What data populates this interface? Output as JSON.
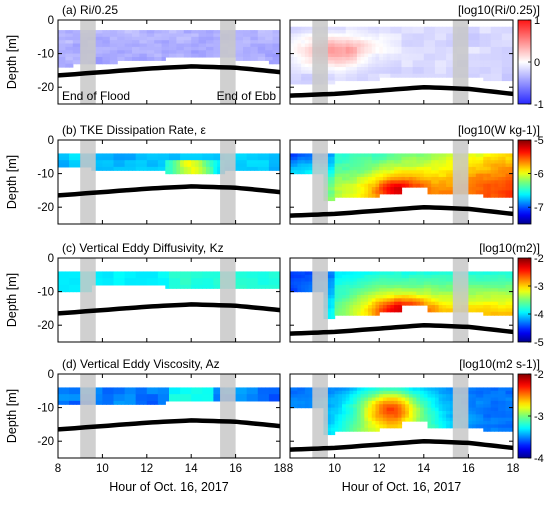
{
  "figure": {
    "xlabel": "Hour of Oct. 16, 2017",
    "ylabel": "Depth [m]",
    "x_ticks": [
      "8",
      "10",
      "12",
      "14",
      "16",
      "18"
    ],
    "y_ticks": [
      "0",
      "-10",
      "-20"
    ],
    "annotations": {
      "flood": "End of Flood",
      "ebb": "End of Ebb"
    },
    "colors": {
      "bottom_line": "#000000",
      "shade": "#c8c8c8"
    }
  },
  "chart_data": [
    {
      "type": "heatmap",
      "title": "(a) Ri/0.25",
      "colorbar_label": "[log10(Ri/0.25)]",
      "colorbar_ticks": [
        "1",
        "0",
        "-1"
      ],
      "clim": [
        -1,
        1
      ],
      "colormap": "blue-white-red",
      "xlim": [
        8,
        18
      ],
      "ylim": [
        -25,
        0
      ],
      "shaded_hours": [
        [
          9,
          9.7
        ],
        [
          15.3,
          16
        ]
      ],
      "bottom_depth": {
        "left": {
          "x": [
            8,
            10,
            12,
            14,
            16,
            18
          ],
          "y": [
            -16.5,
            -15.5,
            -14.5,
            -13.8,
            -14.2,
            -15.5
          ]
        },
        "right": {
          "x": [
            8,
            10,
            12,
            14,
            16,
            18
          ],
          "y": [
            -22.5,
            -22,
            -21,
            -20,
            -20.5,
            -22
          ]
        }
      }
    },
    {
      "type": "heatmap",
      "title": "(b) TKE Dissipation Rate, ε",
      "colorbar_label": "[log10(W kg-1)]",
      "colorbar_ticks": [
        "-5",
        "-6",
        "-7"
      ],
      "clim": [
        -7.5,
        -5
      ],
      "colormap": "jet",
      "xlim": [
        8,
        18
      ],
      "ylim": [
        -25,
        0
      ],
      "shaded_hours": [
        [
          9,
          9.7
        ],
        [
          15.3,
          16
        ]
      ]
    },
    {
      "type": "heatmap",
      "title": "(c) Vertical Eddy Diffusivity, Kz",
      "colorbar_label": "[log10(m2)]",
      "colorbar_ticks": [
        "-2",
        "-3",
        "-4",
        "-5"
      ],
      "clim": [
        -5,
        -2
      ],
      "colormap": "jet",
      "xlim": [
        8,
        18
      ],
      "ylim": [
        -25,
        0
      ],
      "shaded_hours": [
        [
          9,
          9.7
        ],
        [
          15.3,
          16
        ]
      ]
    },
    {
      "type": "heatmap",
      "title": "(d) Vertical Eddy Viscosity, Az",
      "colorbar_label": "[log10(m2 s-1)]",
      "colorbar_ticks": [
        "-2",
        "-3",
        "-4"
      ],
      "clim": [
        -4,
        -2
      ],
      "colormap": "jet",
      "xlim": [
        8,
        18
      ],
      "ylim": [
        -25,
        0
      ],
      "shaded_hours": [
        [
          9,
          9.7
        ],
        [
          15.3,
          16
        ]
      ]
    }
  ]
}
